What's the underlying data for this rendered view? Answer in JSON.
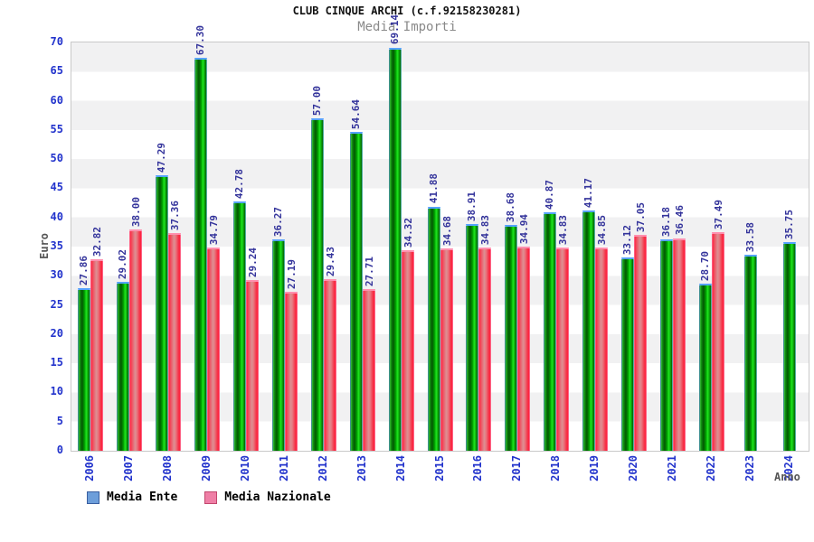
{
  "header": {
    "title": "CLUB CINQUE ARCHI (c.f.92158230281)",
    "subtitle": "Media Importi"
  },
  "chart_data": {
    "type": "bar",
    "title": "CLUB CINQUE ARCHI (c.f.92158230281)",
    "subtitle": "Media Importi",
    "xlabel": "Anno",
    "ylabel": "Euro",
    "ylim": [
      0,
      70
    ],
    "ytick_step": 5,
    "grid": "horizontal-bands-alternating",
    "legend_position": "bottom-left",
    "value_labels": "rotated-90-above-bars",
    "categories": [
      "2006",
      "2007",
      "2008",
      "2009",
      "2010",
      "2011",
      "2012",
      "2013",
      "2014",
      "2015",
      "2016",
      "2017",
      "2018",
      "2019",
      "2020",
      "2021",
      "2022",
      "2023",
      "2024"
    ],
    "series": [
      {
        "name": "Media Ente",
        "bar_style": "green",
        "values": [
          27.86,
          29.02,
          47.29,
          67.3,
          42.78,
          36.27,
          57.0,
          54.64,
          69.14,
          41.88,
          38.91,
          38.68,
          40.87,
          41.17,
          33.12,
          36.18,
          28.7,
          33.58,
          35.75
        ]
      },
      {
        "name": "Media Nazionale",
        "bar_style": "red",
        "values": [
          32.82,
          38.0,
          37.36,
          34.79,
          29.24,
          27.19,
          29.43,
          27.71,
          34.32,
          34.68,
          34.83,
          34.94,
          34.83,
          34.85,
          37.05,
          36.46,
          37.49,
          null,
          null
        ]
      }
    ]
  },
  "colors": {
    "bar_green": "#00b000",
    "bar_green_cap": "#55a2ff",
    "bar_red": "#f04858",
    "bar_red_cap": "#ff8fae",
    "tick_label": "#2233cc",
    "value_label": "#33339b",
    "subtitle": "#8a8a8a",
    "band_gray": "#f1f1f2",
    "legend_swatch_ente": "#6d9eda",
    "legend_swatch_nazionale": "#ef7fa6"
  }
}
